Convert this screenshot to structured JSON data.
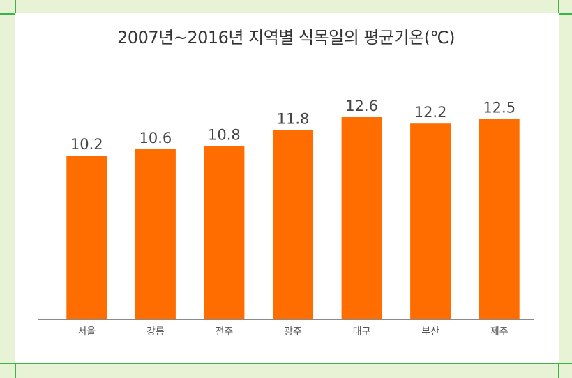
{
  "chart_data": {
    "type": "bar",
    "title": "2007년~2016년 지역별 식목일의 평균기온(℃)",
    "categories": [
      "서울",
      "강릉",
      "전주",
      "광주",
      "대구",
      "부산",
      "제주"
    ],
    "values": [
      10.2,
      10.6,
      10.8,
      11.8,
      12.6,
      12.2,
      12.5
    ],
    "xlabel": "",
    "ylabel": "",
    "ylim": [
      0,
      14
    ],
    "grid": false,
    "legend": "none",
    "bar_color": "#ff6d00"
  },
  "colors": {
    "background": "#e8f3d6",
    "frame": "#3bb54a",
    "panel": "#ffffff",
    "axis": "#444444"
  }
}
